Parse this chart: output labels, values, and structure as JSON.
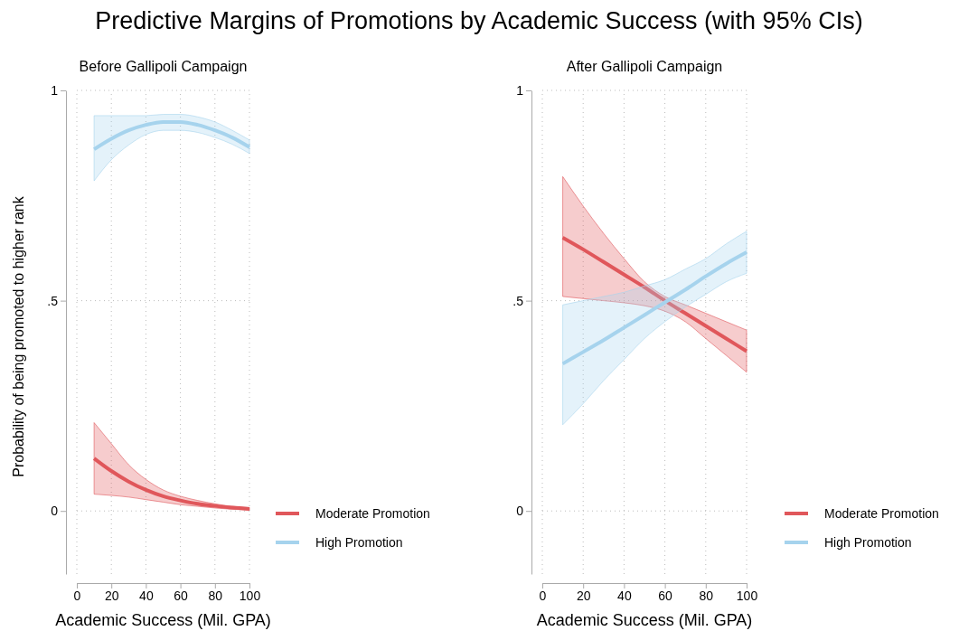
{
  "chart_data": [
    {
      "type": "line",
      "title": "Predictive Margins of Promotions by Academic Success (with 95% CIs)",
      "subtitle": "Before Gallipoli Campaign",
      "xlabel": "Academic Success (Mil. GPA)",
      "ylabel": "Probability of being promoted to higher rank",
      "xlim": [
        0,
        100
      ],
      "xticks": [
        0,
        20,
        40,
        60,
        80,
        100
      ],
      "ylim": [
        -0.15,
        1
      ],
      "yticks": [
        {
          "value": 0,
          "label": "0"
        },
        {
          "value": 0.5,
          "label": ".5"
        },
        {
          "value": 1,
          "label": "1"
        }
      ],
      "grid": true,
      "legend": "bottom right",
      "marker": "none",
      "line_style": "solid",
      "series": [
        {
          "name": "Moderate Promotion",
          "color": "#e0575b",
          "x": [
            10,
            20,
            30,
            40,
            50,
            60,
            70,
            80,
            90,
            100
          ],
          "values": [
            0.125,
            0.095,
            0.07,
            0.05,
            0.035,
            0.025,
            0.017,
            0.012,
            0.008,
            0.005
          ],
          "lower": [
            0.04,
            0.037,
            0.033,
            0.027,
            0.021,
            0.015,
            0.011,
            0.007,
            0.004,
            0.002
          ],
          "upper": [
            0.21,
            0.16,
            0.11,
            0.075,
            0.05,
            0.035,
            0.025,
            0.017,
            0.011,
            0.008
          ]
        },
        {
          "name": "High Promotion",
          "color": "#a6d3ed",
          "x": [
            10,
            20,
            30,
            40,
            50,
            60,
            70,
            80,
            90,
            100
          ],
          "values": [
            0.86,
            0.885,
            0.905,
            0.918,
            0.925,
            0.925,
            0.918,
            0.905,
            0.888,
            0.865
          ],
          "lower": [
            0.785,
            0.835,
            0.87,
            0.895,
            0.905,
            0.905,
            0.9,
            0.888,
            0.872,
            0.85
          ],
          "upper": [
            0.94,
            0.94,
            0.94,
            0.94,
            0.943,
            0.943,
            0.937,
            0.925,
            0.905,
            0.882
          ]
        }
      ]
    },
    {
      "type": "line",
      "subtitle": "After Gallipoli Campaign",
      "xlabel": "Academic Success (Mil. GPA)",
      "xlim": [
        0,
        100
      ],
      "xticks": [
        0,
        20,
        40,
        60,
        80,
        100
      ],
      "ylim": [
        -0.15,
        1
      ],
      "yticks": [
        {
          "value": 0,
          "label": "0"
        },
        {
          "value": 0.5,
          "label": ".5"
        },
        {
          "value": 1,
          "label": "1"
        }
      ],
      "grid": true,
      "legend": "bottom right",
      "marker": "none",
      "line_style": "solid",
      "series": [
        {
          "name": "Moderate Promotion",
          "color": "#e0575b",
          "x": [
            10,
            20,
            30,
            40,
            50,
            60,
            70,
            80,
            90,
            100
          ],
          "values": [
            0.65,
            0.622,
            0.592,
            0.562,
            0.532,
            0.5,
            0.47,
            0.44,
            0.41,
            0.38
          ],
          "lower": [
            0.51,
            0.505,
            0.5,
            0.495,
            0.488,
            0.475,
            0.45,
            0.41,
            0.37,
            0.33
          ],
          "upper": [
            0.795,
            0.725,
            0.66,
            0.6,
            0.545,
            0.51,
            0.49,
            0.47,
            0.45,
            0.43
          ]
        },
        {
          "name": "High Promotion",
          "color": "#a6d3ed",
          "x": [
            10,
            20,
            30,
            40,
            50,
            60,
            70,
            80,
            90,
            100
          ],
          "values": [
            0.35,
            0.378,
            0.406,
            0.436,
            0.466,
            0.496,
            0.526,
            0.558,
            0.588,
            0.615
          ],
          "lower": [
            0.205,
            0.255,
            0.31,
            0.36,
            0.41,
            0.45,
            0.485,
            0.515,
            0.545,
            0.565
          ],
          "upper": [
            0.49,
            0.5,
            0.51,
            0.52,
            0.535,
            0.55,
            0.575,
            0.6,
            0.635,
            0.665
          ]
        }
      ]
    }
  ]
}
